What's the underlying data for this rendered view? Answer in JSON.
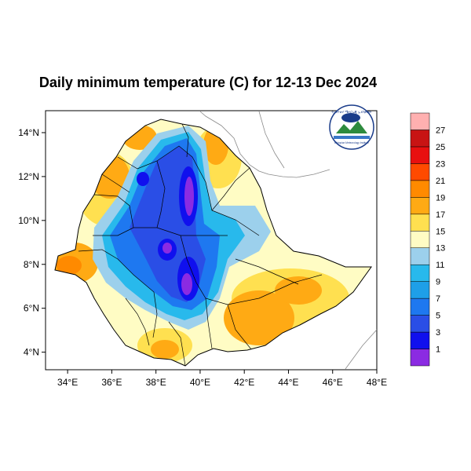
{
  "title": "Daily minimum temperature (C) for 12-13 Dec 2024",
  "logo": {
    "name": "ethiopian-meteorology-institute-logo",
    "text": "Ethiopian Meteorology Institute",
    "amharic_text": "የኢትዮጵያ ሜትሮሎጂ ኢንስቲትዩት"
  },
  "map": {
    "lon_range": [
      33,
      48
    ],
    "lat_range": [
      3.2,
      15
    ],
    "lon_ticks": [
      "34°E",
      "36°E",
      "38°E",
      "40°E",
      "42°E",
      "44°E",
      "46°E",
      "48°E"
    ],
    "lon_tick_values": [
      34,
      36,
      38,
      40,
      42,
      44,
      46,
      48
    ],
    "lat_ticks": [
      "4°N",
      "6°N",
      "8°N",
      "10°N",
      "12°N",
      "14°N"
    ],
    "lat_tick_values": [
      4,
      6,
      8,
      10,
      12,
      14
    ]
  },
  "colorbar": {
    "labels": [
      "1",
      "3",
      "5",
      "7",
      "9",
      "11",
      "13",
      "15",
      "17",
      "19",
      "21",
      "23",
      "25",
      "27"
    ],
    "colors": [
      "#8b2be2",
      "#1010ee",
      "#2a4ee6",
      "#1e78f0",
      "#1e9fe8",
      "#28b9ec",
      "#9cd0ec",
      "#fffcc4",
      "#ffe050",
      "#ffaa14",
      "#ff8a00",
      "#ff4a00",
      "#e81010",
      "#c81414",
      "#ffb0b0"
    ]
  }
}
